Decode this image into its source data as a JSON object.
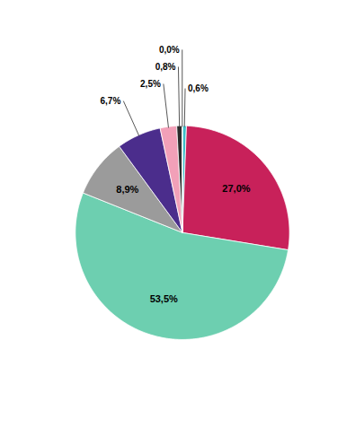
{
  "chart_data": {
    "type": "pie",
    "values": [
      0.6,
      27.0,
      53.5,
      8.9,
      6.7,
      2.5,
      0.8,
      0.05
    ],
    "value_labels": [
      "0,6%",
      "27,0%",
      "53,5%",
      "8,9%",
      "6,7%",
      "2,5%",
      "0,8%",
      "0,0%"
    ],
    "colors": [
      "#3BBFC9",
      "#C8215A",
      "#6DCFB0",
      "#9B9B9B",
      "#4B2D8C",
      "#F2A0B8",
      "#2A2A2A",
      "#888888"
    ],
    "data_labels": true
  }
}
